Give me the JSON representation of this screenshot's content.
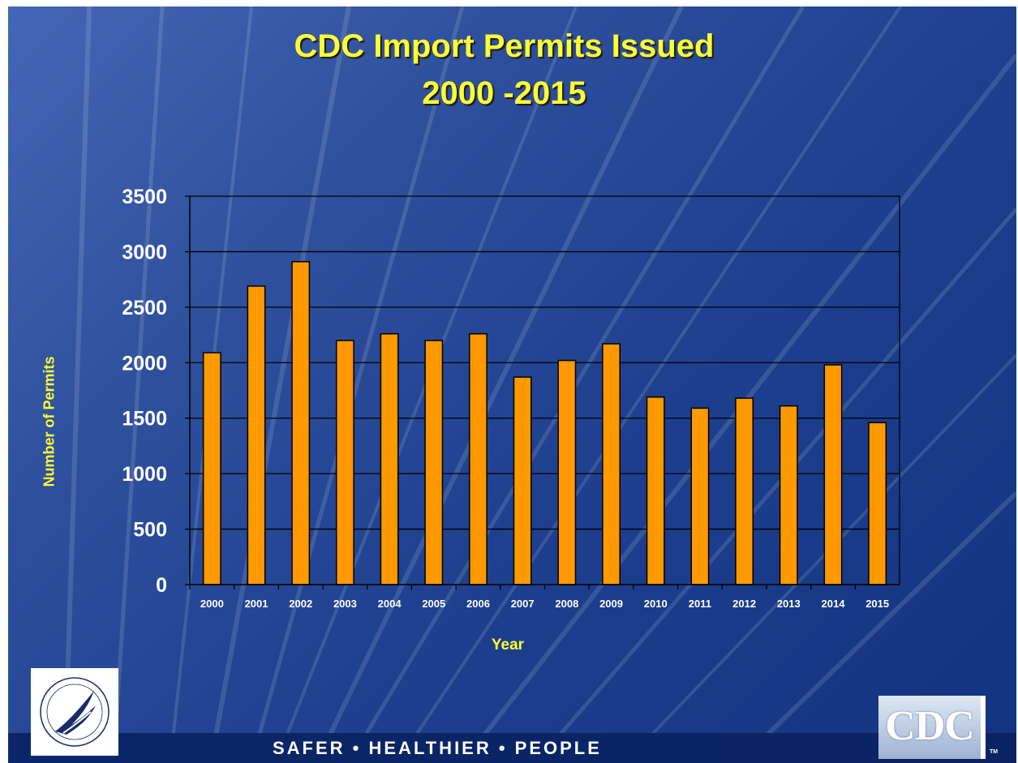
{
  "title_line1": "CDC Import Permits Issued",
  "title_line2": "2000 -2015",
  "tagline": "SAFER • HEALTHIER • PEOPLE",
  "logo_text": "CDC",
  "tm": "TM",
  "colors": {
    "bar": "#ff9900",
    "title": "#ffff33",
    "axis_text": "#ffffff",
    "background": "#1d3f8e"
  },
  "icons": [
    "hhs-eagle-logo",
    "cdc-logo"
  ],
  "chart_data": {
    "type": "bar",
    "title": "CDC Import Permits Issued 2000 -2015",
    "xlabel": "Year",
    "ylabel": "Number of Permits",
    "categories": [
      "2000",
      "2001",
      "2002",
      "2003",
      "2004",
      "2005",
      "2006",
      "2007",
      "2008",
      "2009",
      "2010",
      "2011",
      "2012",
      "2013",
      "2014",
      "2015"
    ],
    "values": [
      2090,
      2690,
      2910,
      2200,
      2260,
      2200,
      2260,
      1870,
      2020,
      2170,
      1690,
      1590,
      1680,
      1610,
      1980,
      1460
    ],
    "ylim": [
      0,
      3500
    ],
    "yticks": [
      0,
      500,
      1000,
      1500,
      2000,
      2500,
      3000,
      3500
    ],
    "grid": true,
    "legend": "none"
  }
}
